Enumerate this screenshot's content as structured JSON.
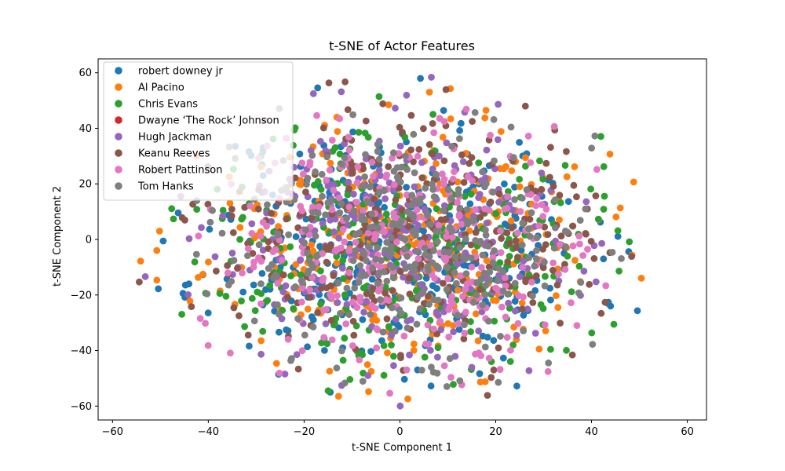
{
  "chart_data": {
    "type": "scatter",
    "title": "t-SNE of Actor Features",
    "xlabel": "t-SNE Component 1",
    "ylabel": "t-SNE Component 2",
    "xlim": [
      -63,
      64
    ],
    "ylim": [
      -65,
      65
    ],
    "xticks": [
      -60,
      -40,
      -20,
      0,
      20,
      40,
      60
    ],
    "yticks": [
      -60,
      -40,
      -20,
      0,
      20,
      40,
      60
    ],
    "grid": false,
    "legend_position": "upper-left",
    "series": [
      {
        "name": "robert downey jr",
        "color": "#1f77b4",
        "count": 340,
        "seed": 11,
        "note_center": [
          0,
          0
        ]
      },
      {
        "name": "Al Pacino",
        "color": "#ff7f0e",
        "count": 300,
        "seed": 23,
        "note_center": [
          0,
          0
        ]
      },
      {
        "name": "Chris Evans",
        "color": "#2ca02c",
        "count": 300,
        "seed": 37,
        "note_center": [
          0,
          0
        ]
      },
      {
        "name": "Dwayne ‘The Rock’ Johnson",
        "color": "#d62728",
        "count": 0,
        "seed": 41,
        "note_center": [
          0,
          0
        ]
      },
      {
        "name": "Hugh Jackman",
        "color": "#9467bd",
        "count": 300,
        "seed": 53,
        "note_center": [
          0,
          0
        ]
      },
      {
        "name": "Keanu Reeves",
        "color": "#8c564b",
        "count": 300,
        "seed": 67,
        "note_center": [
          0,
          0
        ]
      },
      {
        "name": "Robert Pattinson",
        "color": "#e377c2",
        "count": 300,
        "seed": 79,
        "note_center": [
          0,
          0
        ]
      },
      {
        "name": "Tom Hanks",
        "color": "#7f7f7f",
        "count": 300,
        "seed": 97,
        "note_center": [
          0,
          0
        ]
      }
    ]
  }
}
